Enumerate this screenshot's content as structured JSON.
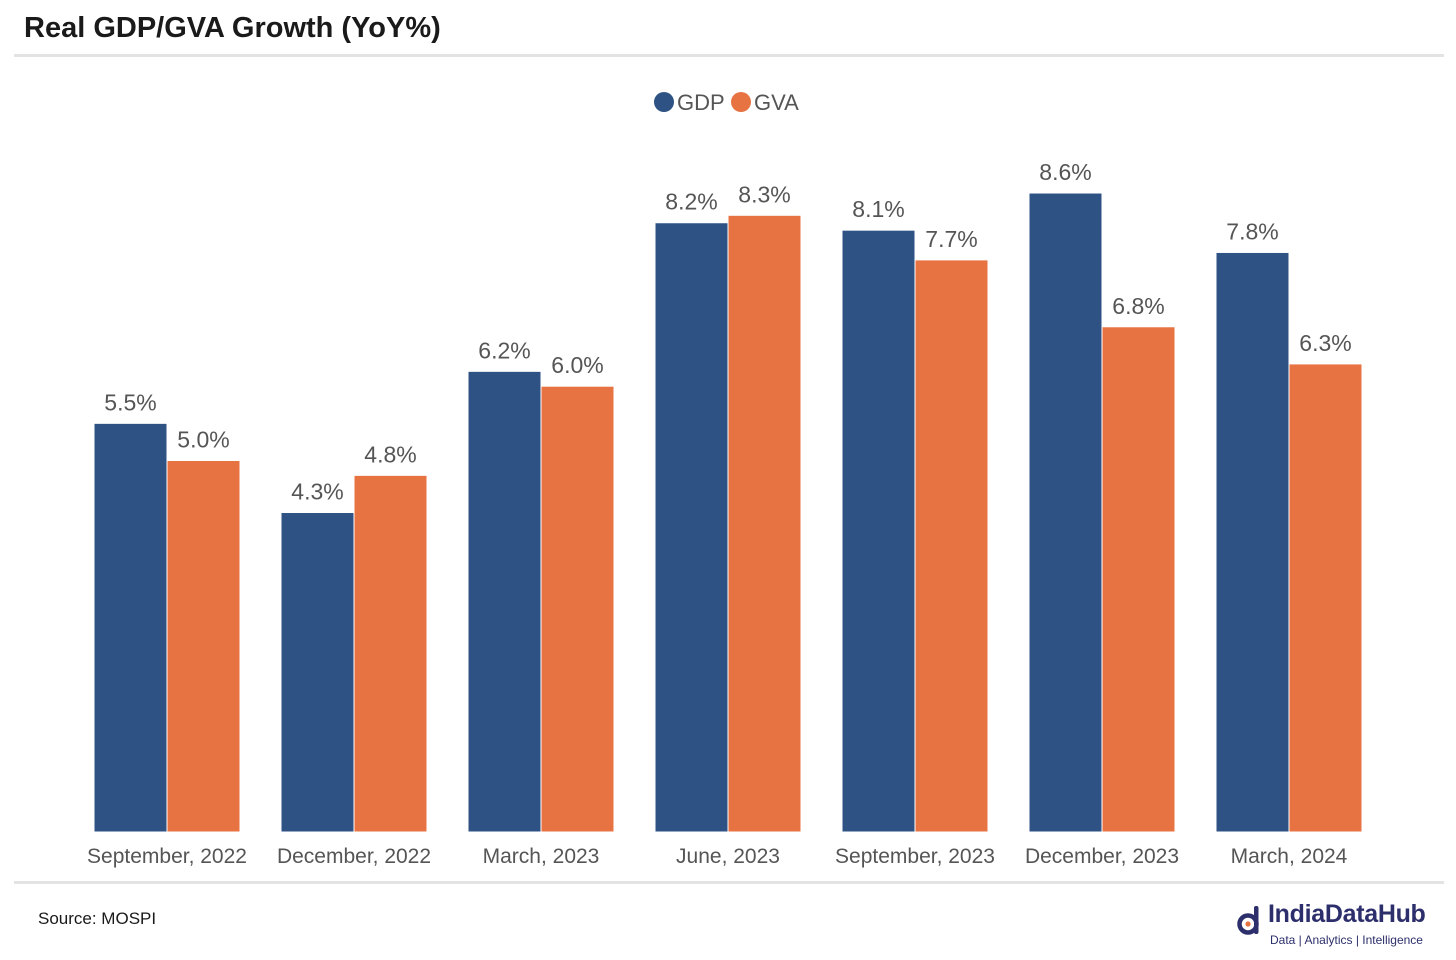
{
  "header": {
    "title": "Real GDP/GVA Growth (YoY%)"
  },
  "footer": {
    "source": "Source: MOSPI",
    "brand_name": "IndiaDataHub",
    "brand_tagline": "Data | Analytics | Intelligence",
    "brand_icon": "indiadatahub-logo-icon"
  },
  "colors": {
    "gdp": "#2e5284",
    "gva": "#e87342",
    "label_text": "#555555",
    "brand": "#2c2f6b"
  },
  "chart_data": {
    "type": "bar",
    "title": "",
    "xlabel": "",
    "ylabel": "",
    "ylim": [
      0,
      10
    ],
    "grid": false,
    "legend_position": "top-center",
    "value_suffix": "%",
    "categories": [
      "September, 2022",
      "December, 2022",
      "March, 2023",
      "June, 2023",
      "September, 2023",
      "December, 2023",
      "March, 2024"
    ],
    "series": [
      {
        "name": "GDP",
        "color": "#2e5284",
        "values": [
          5.5,
          4.3,
          6.2,
          8.2,
          8.1,
          8.6,
          7.8
        ]
      },
      {
        "name": "GVA",
        "color": "#e87342",
        "values": [
          5.0,
          4.8,
          6.0,
          8.3,
          7.7,
          6.8,
          6.3
        ]
      }
    ]
  }
}
